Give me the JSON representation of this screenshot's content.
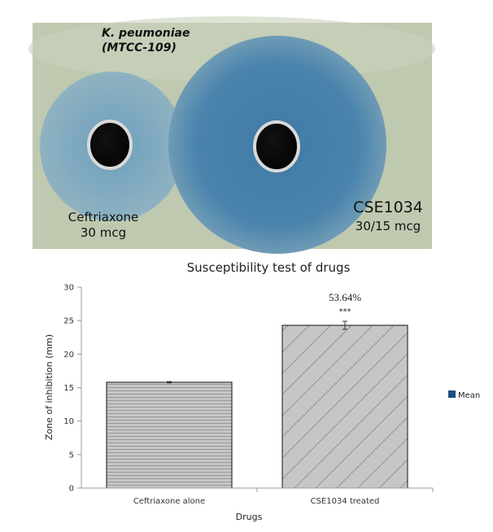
{
  "photo": {
    "organism_line1": "K. peumoniae",
    "organism_line2": "(MTCC-109)",
    "left_label_line1": "Ceftriaxone",
    "left_label_line2": "30 mcg",
    "right_label_line1": "CSE1034",
    "right_label_line2": "30/15 mcg",
    "plate_color": "#bfc9b0",
    "zone_color": "#4d86ab"
  },
  "chart_data": {
    "type": "bar",
    "title": "Susceptibility test of drugs",
    "xlabel": "Drugs",
    "ylabel": "Zone of inhibition (mm)",
    "categories": [
      "Ceftriaxone alone",
      "CSE1034 treated"
    ],
    "series": [
      {
        "name": "Mean",
        "values": [
          15.8,
          24.3
        ],
        "errors": [
          0.1,
          0.6
        ],
        "color": "#1c4f80"
      }
    ],
    "ylim": [
      0,
      30
    ],
    "yticks": [
      0,
      5,
      10,
      15,
      20,
      25,
      30
    ],
    "grid": false,
    "legend": "right",
    "annotations": [
      {
        "category": "CSE1034 treated",
        "percent_label": "53.64%",
        "significance": "***"
      }
    ]
  }
}
